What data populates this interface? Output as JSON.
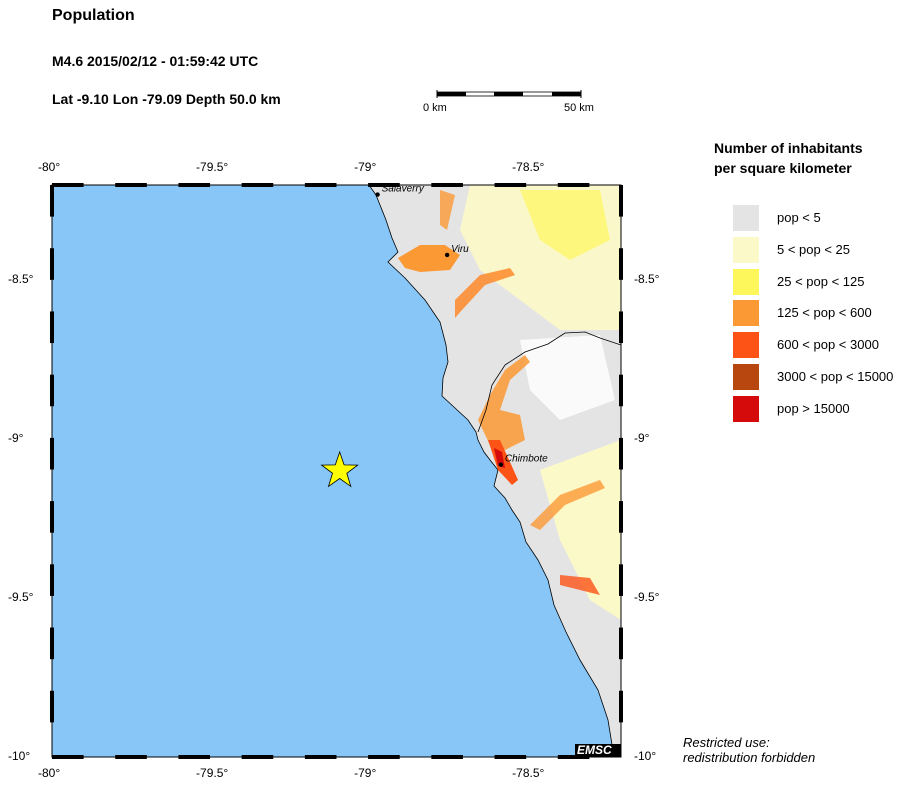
{
  "header": {
    "title": "Population",
    "event_line": "M4.6  2015/02/12 - 01:59:42 UTC",
    "location_line": "Lat -9.10    Lon -79.09     Depth  50.0 km"
  },
  "scale_bar": {
    "start_label": "0 km",
    "end_label": "50 km"
  },
  "map": {
    "lon_range": [
      -80,
      -78.2
    ],
    "lat_range": [
      -10,
      -8.2
    ],
    "lon_ticks": [
      "-80°",
      "-79.5°",
      "-79°",
      "-78.5°"
    ],
    "lat_ticks": [
      "-8.5°",
      "-9°",
      "-9.5°",
      "-10°"
    ],
    "epicenter": {
      "lon": -79.09,
      "lat": -9.1,
      "icon": "star-icon",
      "color": "#ffff00"
    },
    "sea_color": "#87c6f7",
    "cities": [
      {
        "name": "Salaverry",
        "lon": -78.97,
        "lat": -8.23
      },
      {
        "name": "Viru",
        "lon": -78.75,
        "lat": -8.42
      },
      {
        "name": "Chimbote",
        "lon": -78.58,
        "lat": -9.08
      }
    ],
    "watermark": "EMSC"
  },
  "legend": {
    "title_line1": "Number of inhabitants",
    "title_line2": "per square kilometer",
    "items": [
      {
        "label": "pop < 5",
        "color": "#e4e4e4"
      },
      {
        "label": "5 < pop < 25",
        "color": "#fcf9c8"
      },
      {
        "label": "25 < pop < 125",
        "color": "#fdf75c"
      },
      {
        "label": "125 < pop < 600",
        "color": "#fb9935"
      },
      {
        "label": "600 < pop < 3000",
        "color": "#fd5316"
      },
      {
        "label": "3000 < pop < 15000",
        "color": "#b8460f"
      },
      {
        "label": "pop > 15000",
        "color": "#d50a0a"
      }
    ]
  },
  "footer": {
    "line1": "Restricted use:",
    "line2": "redistribution forbidden"
  }
}
